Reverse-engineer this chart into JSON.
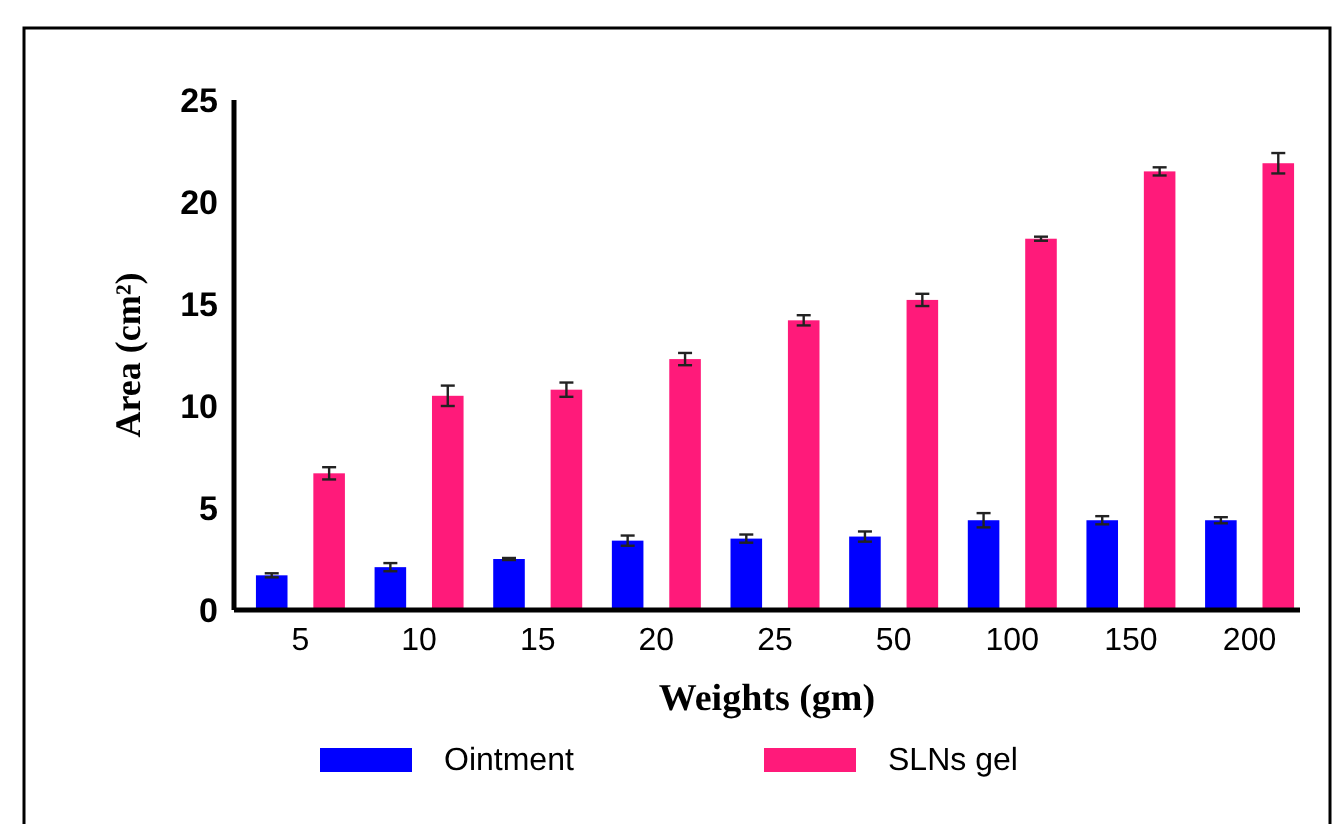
{
  "chart_data": {
    "type": "bar",
    "xlabel": "Weights (gm)",
    "ylabel": "Area (cm²)",
    "categories": [
      "5",
      "10",
      "15",
      "20",
      "25",
      "50",
      "100",
      "150",
      "200"
    ],
    "series": [
      {
        "name": "Ointment",
        "color": "#0000ff",
        "values": [
          1.7,
          2.1,
          2.5,
          3.4,
          3.5,
          3.6,
          4.4,
          4.4,
          4.4
        ],
        "errors": [
          0.1,
          0.2,
          0.05,
          0.25,
          0.2,
          0.25,
          0.35,
          0.2,
          0.15
        ]
      },
      {
        "name": "SLNs gel",
        "color": "#ff1a7a",
        "values": [
          6.7,
          10.5,
          10.8,
          12.3,
          14.2,
          15.2,
          18.2,
          21.5,
          21.9
        ],
        "errors": [
          0.3,
          0.5,
          0.35,
          0.3,
          0.25,
          0.3,
          0.1,
          0.2,
          0.5
        ]
      }
    ],
    "ylim": [
      0,
      25
    ],
    "yticks": [
      0,
      5,
      10,
      15,
      20,
      25
    ],
    "grid": false,
    "legend": "bottom"
  }
}
